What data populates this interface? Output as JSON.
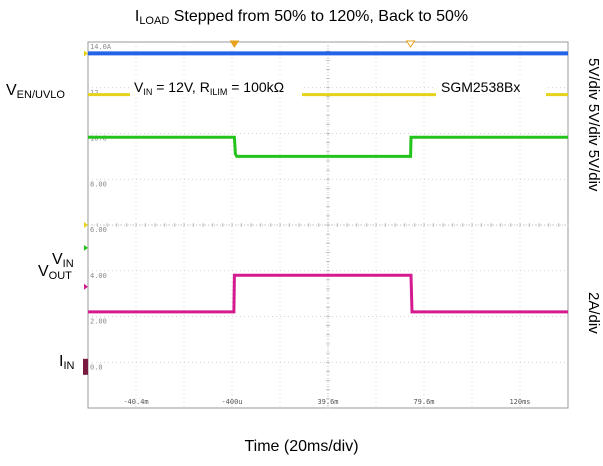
{
  "chart_data": {
    "type": "line",
    "title": {
      "main": "I",
      "sub": "LOAD",
      "rest": " Stepped from 50% to 120%, Back to 50%"
    },
    "xlabel": "Time (20ms/div)",
    "annotation": {
      "a": "V",
      "a_sub": "IN",
      "b": " = 12V, R",
      "b_sub": "ILIM",
      "c": " = 100kΩ"
    },
    "device": "SGM2538Bx",
    "scope_header": "14.0A",
    "grid_labels": [
      "12",
      "10.0",
      "8.00",
      "6.00",
      "4.00",
      "2.00",
      "0.0"
    ],
    "x_ticks": [
      "-40.4m",
      "-400u",
      "39.6m",
      "79.6m",
      "120ms"
    ],
    "channel_labels": [
      {
        "main": "V",
        "sub": "EN/UVLO"
      },
      {
        "main": "V",
        "sub": "IN"
      },
      {
        "main": "V",
        "sub": "OUT"
      },
      {
        "main": "I",
        "sub": "IN"
      }
    ],
    "scale_labels": [
      "5V/div 5V/div 5V/div",
      "2A/div"
    ],
    "x_range_div": [
      0,
      10
    ],
    "y_range_div": [
      0,
      8
    ],
    "events_div": [
      3.05,
      6.72
    ],
    "series": [
      {
        "color": "#2463e8",
        "x": [
          0,
          10
        ],
        "y": [
          7.75,
          7.75
        ]
      },
      {
        "color": "#e6d21a",
        "x": [
          0,
          10
        ],
        "y": [
          6.85,
          6.85
        ]
      },
      {
        "color": "#22c41b",
        "x": [
          0,
          3.05,
          3.07,
          3.1,
          6.72,
          6.73,
          10
        ],
        "y": [
          5.92,
          5.92,
          5.55,
          5.5,
          5.5,
          5.92,
          5.92
        ]
      },
      {
        "color": "#d41a8e",
        "x": [
          0,
          3.04,
          3.05,
          6.73,
          6.75,
          10
        ],
        "y": [
          2.1,
          2.1,
          2.9,
          2.9,
          2.1,
          2.1
        ]
      }
    ]
  }
}
